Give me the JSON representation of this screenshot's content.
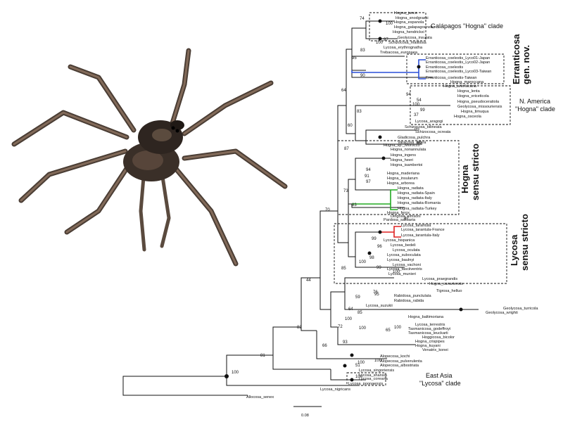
{
  "colors": {
    "branch": "#111111",
    "erranticosa": "#2a4fd8",
    "radiata": "#22aa22",
    "tarantula": "#dd2222"
  },
  "clades": {
    "galapagos": "Galápagos \"Hogna\" clade",
    "erranticosa_1": "Erranticosa",
    "erranticosa_2": "gen. nov.",
    "namerica_1": "N. America",
    "namerica_2": "\"Hogna\" clade",
    "hogna_1": "Hogna",
    "hogna_2": "sensu stricto",
    "lycosa_1": "Lycosa",
    "lycosa_2": "sensu stricto",
    "eastasia_1": "East Asia",
    "eastasia_2": "\"Lycosa\" clade"
  },
  "scale_label": "0.08",
  "supports": [
    "74",
    "100",
    "97",
    "100",
    "83",
    "95",
    "90",
    "64",
    "94",
    "54",
    "100",
    "99",
    "37",
    "83",
    "60",
    "99",
    "99",
    "87",
    "94",
    "91",
    "97",
    "73",
    "83",
    "70",
    "82",
    "99",
    "96",
    "98",
    "100",
    "99",
    "100",
    "44",
    "85",
    "76",
    "59",
    "95",
    "64",
    "85",
    "100",
    "72",
    "65",
    "100",
    "66",
    "93",
    "100",
    "51",
    "82",
    "81",
    "100",
    "100",
    "100",
    "100"
  ],
  "tips": [
    "Hogna_junco",
    "Hogna_snodgrassi",
    "Hogna_espanola",
    "Hogna_galapagoensis",
    "Hogna_hendrickxi",
    "Geolycosa_insulata",
    "Schizocosa_malitiosa",
    "Lycosa_erythrognatha",
    "Trebacosa_europaea",
    "Erranticosa_coelestis_Lyco01-Japan",
    "Erranticosa_coelestis_Lyco02-Japan",
    "Erranticosa_coelestis",
    "Erranticosa_coelestis_Lyco03-Taiwan",
    "Erranticosa_coelestis-Taiwan",
    "Hogna_maroccana",
    "Hogna_antelucana",
    "Hogna_lenta",
    "Hogna_ericeticola",
    "Hogna_pseudoceratiola",
    "Geolycosa_missouriensis",
    "Hogna_timuqua",
    "Hogna_osceola",
    "Lycosa_aragogi",
    "Schizocosa_bilineata",
    "Schizocosa_ocreata",
    "Gladicosa_pulchra",
    "Varacosa_avara",
    "Hogna_sp._Morocco",
    "Hogna_nonannulata",
    "Hogna_ingens",
    "Hogna_heeri",
    "Hogna_isambertoi",
    "Hogna_maderiana",
    "Hogna_insularum",
    "Hogna_arborea",
    "Hogna_radiata",
    "Hogna_radiata-Spain",
    "Hogna_radiata-Italy",
    "Hogna_radiata-Romania",
    "Hogna_radiata-Turkey",
    "Hogna_ferox",
    "Dingosa_simsoni",
    "Pardosa_saltuaria",
    "Lycosa_tarantula",
    "Lycosa_tarantula-France",
    "Lycosa_tarantula-Italy",
    "Lycosa_hispanica",
    "Lycosa_bedeli",
    "Lycosa_oculata",
    "Lycosa_suboculata",
    "Lycosa_baulnyi",
    "Lycosa_vachoni",
    "Lycosa_fasciiventris",
    "Lycosa_munieri",
    "Lycosa_praegrandis",
    "Hogna_canariensis",
    "Tigrosa_helluo",
    "Rabidosa_punctulata",
    "Rabidosa_rabida",
    "Lycosa_suzukii",
    "Geolycosa_turricola",
    "Geolycosa_wrighti",
    "Hogna_baltimoriana",
    "Lycosa_terrestris",
    "Tasmanicosa_godeffroyi",
    "Tasmanicosa_leuckarti",
    "Hoggicosa_bicolor",
    "Hogna_crispipes",
    "Hogna_kuyani",
    "Venatrix_konei",
    "Alopecosa_kochi",
    "Alopecosa_pulverulenta",
    "Alopecosa_albostriata",
    "Lycosa_singoriensis",
    "Lycosa_shansia",
    "Lycosa_coreana",
    "Lycosa_poonaensis",
    "Lycosa_nigricans",
    "Allocosa_senex"
  ]
}
